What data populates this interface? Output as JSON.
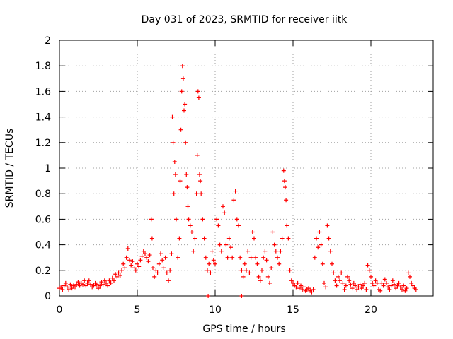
{
  "chart_data": {
    "type": "scatter",
    "title": "Day 031 of 2023, SRMTID for receiver iitk",
    "xlabel": "GPS time / hours",
    "ylabel": "SRMTID / TECUs",
    "xlim": [
      0,
      24
    ],
    "ylim": [
      0,
      2
    ],
    "xticks": [
      0,
      5,
      10,
      15,
      20
    ],
    "xtick_labels": [
      "0",
      "5",
      "10",
      "15",
      "20"
    ],
    "yticks": [
      0,
      0.2,
      0.4,
      0.6,
      0.8,
      1,
      1.2,
      1.4,
      1.6,
      1.8,
      2
    ],
    "ytick_labels": [
      "0",
      "0.2",
      "0.4",
      "0.6",
      "0.8",
      "1",
      "1.2",
      "1.4",
      "1.6",
      "1.8",
      "2"
    ],
    "grid": true,
    "marker": "+",
    "color": "#ff0000",
    "series": [
      {
        "name": "SRMTID",
        "points": [
          [
            0.0,
            0.06
          ],
          [
            0.1,
            0.07
          ],
          [
            0.2,
            0.05
          ],
          [
            0.3,
            0.08
          ],
          [
            0.4,
            0.1
          ],
          [
            0.5,
            0.07
          ],
          [
            0.6,
            0.05
          ],
          [
            0.7,
            0.09
          ],
          [
            0.8,
            0.06
          ],
          [
            0.9,
            0.08
          ],
          [
            1.0,
            0.07
          ],
          [
            1.1,
            0.09
          ],
          [
            1.2,
            0.11
          ],
          [
            1.3,
            0.08
          ],
          [
            1.4,
            0.1
          ],
          [
            1.5,
            0.09
          ],
          [
            1.6,
            0.12
          ],
          [
            1.7,
            0.08
          ],
          [
            1.8,
            0.1
          ],
          [
            1.9,
            0.12
          ],
          [
            2.0,
            0.09
          ],
          [
            2.1,
            0.07
          ],
          [
            2.2,
            0.08
          ],
          [
            2.3,
            0.1
          ],
          [
            2.4,
            0.09
          ],
          [
            2.5,
            0.06
          ],
          [
            2.6,
            0.08
          ],
          [
            2.7,
            0.11
          ],
          [
            2.8,
            0.09
          ],
          [
            2.9,
            0.12
          ],
          [
            3.0,
            0.1
          ],
          [
            3.1,
            0.08
          ],
          [
            3.2,
            0.12
          ],
          [
            3.3,
            0.1
          ],
          [
            3.4,
            0.14
          ],
          [
            3.5,
            0.12
          ],
          [
            3.6,
            0.17
          ],
          [
            3.7,
            0.15
          ],
          [
            3.8,
            0.18
          ],
          [
            3.9,
            0.16
          ],
          [
            4.0,
            0.2
          ],
          [
            4.1,
            0.25
          ],
          [
            4.2,
            0.22
          ],
          [
            4.3,
            0.3
          ],
          [
            4.4,
            0.37
          ],
          [
            4.5,
            0.28
          ],
          [
            4.6,
            0.24
          ],
          [
            4.7,
            0.27
          ],
          [
            4.8,
            0.22
          ],
          [
            4.9,
            0.2
          ],
          [
            5.0,
            0.25
          ],
          [
            5.1,
            0.23
          ],
          [
            5.2,
            0.28
          ],
          [
            5.3,
            0.31
          ],
          [
            5.4,
            0.35
          ],
          [
            5.5,
            0.33
          ],
          [
            5.6,
            0.3
          ],
          [
            5.7,
            0.27
          ],
          [
            5.8,
            0.32
          ],
          [
            5.9,
            0.6
          ],
          [
            5.95,
            0.45
          ],
          [
            6.0,
            0.22
          ],
          [
            6.1,
            0.15
          ],
          [
            6.2,
            0.2
          ],
          [
            6.3,
            0.18
          ],
          [
            6.4,
            0.25
          ],
          [
            6.5,
            0.33
          ],
          [
            6.6,
            0.28
          ],
          [
            6.7,
            0.22
          ],
          [
            6.8,
            0.3
          ],
          [
            6.9,
            0.18
          ],
          [
            7.0,
            0.12
          ],
          [
            7.1,
            0.2
          ],
          [
            7.2,
            0.33
          ],
          [
            7.25,
            1.4
          ],
          [
            7.3,
            1.2
          ],
          [
            7.35,
            0.8
          ],
          [
            7.4,
            1.05
          ],
          [
            7.45,
            0.95
          ],
          [
            7.5,
            0.6
          ],
          [
            7.6,
            0.3
          ],
          [
            7.7,
            0.45
          ],
          [
            7.75,
            0.9
          ],
          [
            7.8,
            1.3
          ],
          [
            7.85,
            1.6
          ],
          [
            7.9,
            1.8
          ],
          [
            7.95,
            1.7
          ],
          [
            8.0,
            1.45
          ],
          [
            8.05,
            1.5
          ],
          [
            8.1,
            1.2
          ],
          [
            8.15,
            0.95
          ],
          [
            8.2,
            0.85
          ],
          [
            8.25,
            0.7
          ],
          [
            8.3,
            0.6
          ],
          [
            8.4,
            0.55
          ],
          [
            8.5,
            0.5
          ],
          [
            8.6,
            0.35
          ],
          [
            8.7,
            0.45
          ],
          [
            8.8,
            0.8
          ],
          [
            8.85,
            1.1
          ],
          [
            8.9,
            1.6
          ],
          [
            8.95,
            1.55
          ],
          [
            9.0,
            0.95
          ],
          [
            9.05,
            0.9
          ],
          [
            9.1,
            0.8
          ],
          [
            9.2,
            0.6
          ],
          [
            9.3,
            0.45
          ],
          [
            9.4,
            0.3
          ],
          [
            9.5,
            0.2
          ],
          [
            9.6,
            0.25
          ],
          [
            9.7,
            0.18
          ],
          [
            9.8,
            0.35
          ],
          [
            9.9,
            0.28
          ],
          [
            10.0,
            0.25
          ],
          [
            10.1,
            0.6
          ],
          [
            10.2,
            0.55
          ],
          [
            10.3,
            0.4
          ],
          [
            10.4,
            0.35
          ],
          [
            10.5,
            0.7
          ],
          [
            10.6,
            0.65
          ],
          [
            10.7,
            0.4
          ],
          [
            10.8,
            0.3
          ],
          [
            10.9,
            0.45
          ],
          [
            11.0,
            0.38
          ],
          [
            11.1,
            0.3
          ],
          [
            11.2,
            0.75
          ],
          [
            11.3,
            0.82
          ],
          [
            11.4,
            0.6
          ],
          [
            11.5,
            0.55
          ],
          [
            11.6,
            0.3
          ],
          [
            11.7,
            0.2
          ],
          [
            11.8,
            0.15
          ],
          [
            11.9,
            0.25
          ],
          [
            12.0,
            0.2
          ],
          [
            12.1,
            0.35
          ],
          [
            12.2,
            0.18
          ],
          [
            12.3,
            0.3
          ],
          [
            12.4,
            0.5
          ],
          [
            12.5,
            0.45
          ],
          [
            12.6,
            0.3
          ],
          [
            12.7,
            0.25
          ],
          [
            12.8,
            0.15
          ],
          [
            12.9,
            0.12
          ],
          [
            13.0,
            0.2
          ],
          [
            13.1,
            0.3
          ],
          [
            13.2,
            0.35
          ],
          [
            13.3,
            0.28
          ],
          [
            13.4,
            0.15
          ],
          [
            13.5,
            0.1
          ],
          [
            13.6,
            0.22
          ],
          [
            13.7,
            0.5
          ],
          [
            13.8,
            0.4
          ],
          [
            13.9,
            0.35
          ],
          [
            14.0,
            0.3
          ],
          [
            14.1,
            0.25
          ],
          [
            14.2,
            0.35
          ],
          [
            14.3,
            0.45
          ],
          [
            14.4,
            0.98
          ],
          [
            14.45,
            0.9
          ],
          [
            14.5,
            0.85
          ],
          [
            14.55,
            0.75
          ],
          [
            14.6,
            0.55
          ],
          [
            14.7,
            0.45
          ],
          [
            14.8,
            0.2
          ],
          [
            14.9,
            0.12
          ],
          [
            15.0,
            0.1
          ],
          [
            15.1,
            0.08
          ],
          [
            15.2,
            0.07
          ],
          [
            15.3,
            0.1
          ],
          [
            15.4,
            0.06
          ],
          [
            15.5,
            0.08
          ],
          [
            15.6,
            0.05
          ],
          [
            15.7,
            0.07
          ],
          [
            15.8,
            0.04
          ],
          [
            15.9,
            0.05
          ],
          [
            16.0,
            0.06
          ],
          [
            16.1,
            0.04
          ],
          [
            16.2,
            0.03
          ],
          [
            16.3,
            0.05
          ],
          [
            16.4,
            0.3
          ],
          [
            16.5,
            0.45
          ],
          [
            16.6,
            0.38
          ],
          [
            16.7,
            0.5
          ],
          [
            16.8,
            0.4
          ],
          [
            16.9,
            0.25
          ],
          [
            17.0,
            0.1
          ],
          [
            17.1,
            0.07
          ],
          [
            17.2,
            0.55
          ],
          [
            17.3,
            0.45
          ],
          [
            17.4,
            0.35
          ],
          [
            17.5,
            0.25
          ],
          [
            17.6,
            0.18
          ],
          [
            17.7,
            0.12
          ],
          [
            17.8,
            0.08
          ],
          [
            17.9,
            0.15
          ],
          [
            18.0,
            0.12
          ],
          [
            18.1,
            0.18
          ],
          [
            18.2,
            0.1
          ],
          [
            18.3,
            0.05
          ],
          [
            18.4,
            0.08
          ],
          [
            18.5,
            0.15
          ],
          [
            18.6,
            0.12
          ],
          [
            18.7,
            0.09
          ],
          [
            18.8,
            0.06
          ],
          [
            18.9,
            0.1
          ],
          [
            19.0,
            0.08
          ],
          [
            19.1,
            0.05
          ],
          [
            19.2,
            0.07
          ],
          [
            19.3,
            0.09
          ],
          [
            19.4,
            0.06
          ],
          [
            19.5,
            0.08
          ],
          [
            19.6,
            0.1
          ],
          [
            19.7,
            0.05
          ],
          [
            19.8,
            0.24
          ],
          [
            19.9,
            0.2
          ],
          [
            20.0,
            0.15
          ],
          [
            20.1,
            0.1
          ],
          [
            20.2,
            0.08
          ],
          [
            20.3,
            0.12
          ],
          [
            20.4,
            0.1
          ],
          [
            20.5,
            0.05
          ],
          [
            20.6,
            0.04
          ],
          [
            20.7,
            0.1
          ],
          [
            20.8,
            0.08
          ],
          [
            20.9,
            0.13
          ],
          [
            21.0,
            0.1
          ],
          [
            21.1,
            0.07
          ],
          [
            21.2,
            0.05
          ],
          [
            21.3,
            0.08
          ],
          [
            21.4,
            0.12
          ],
          [
            21.5,
            0.09
          ],
          [
            21.6,
            0.06
          ],
          [
            21.7,
            0.08
          ],
          [
            21.8,
            0.1
          ],
          [
            21.9,
            0.07
          ],
          [
            22.0,
            0.05
          ],
          [
            22.1,
            0.08
          ],
          [
            22.2,
            0.04
          ],
          [
            22.3,
            0.06
          ],
          [
            22.4,
            0.18
          ],
          [
            22.5,
            0.15
          ],
          [
            22.6,
            0.1
          ],
          [
            22.7,
            0.08
          ],
          [
            22.8,
            0.06
          ],
          [
            22.9,
            0.05
          ],
          [
            9.55,
            0.0
          ],
          [
            11.7,
            0.0
          ]
        ]
      }
    ]
  }
}
